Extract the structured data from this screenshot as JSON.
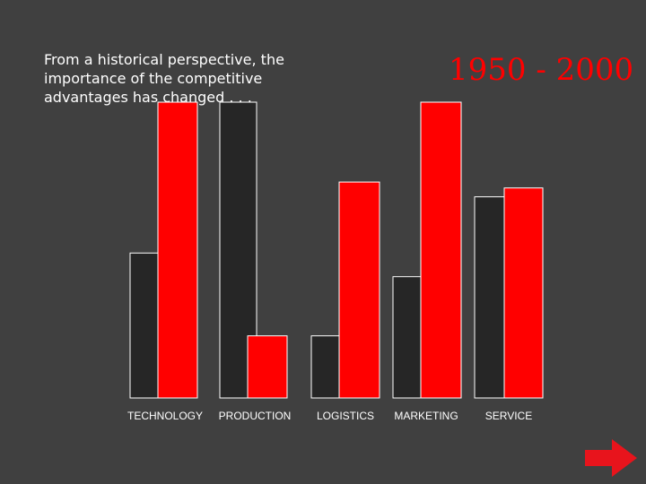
{
  "slide": {
    "intro_lines": [
      "From a historical perspective, the",
      "importance of the competitive",
      "advantages has changed . . ."
    ],
    "period": "1950 - 2000"
  },
  "chart_data": {
    "type": "bar",
    "categories": [
      "TECHNOLOGY",
      "PRODUCTION",
      "LOGISTICS",
      "MARKETING",
      "SERVICE"
    ],
    "series": [
      {
        "color": "#262626",
        "values": [
          49,
          100,
          21,
          41,
          68
        ]
      },
      {
        "color": "#ff0000",
        "values": [
          100,
          21,
          73,
          100,
          71
        ]
      }
    ],
    "ylim": [
      0,
      100
    ],
    "grid": false,
    "legend": "none"
  },
  "nav": {
    "next_icon": "arrow-right-icon",
    "next_color": "#e8141c"
  }
}
